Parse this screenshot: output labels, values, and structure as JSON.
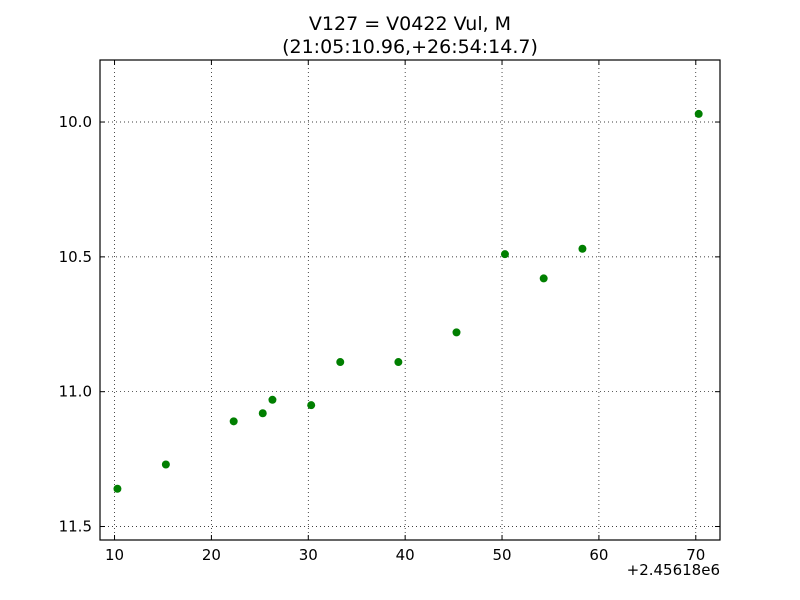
{
  "chart_data": {
    "type": "scatter",
    "title": "V127 = V0422 Vul, M",
    "subtitle": "(21:05:10.96,+26:54:14.7)",
    "xlabel": "",
    "ylabel": "",
    "x_offset_label": "+2.45618e6",
    "xlim": [
      8.5,
      72.5
    ],
    "ylim": [
      11.55,
      9.77
    ],
    "y_inverted": true,
    "x_ticks": [
      10,
      20,
      30,
      40,
      50,
      60,
      70
    ],
    "x_tick_labels": [
      "10",
      "20",
      "30",
      "40",
      "50",
      "60",
      "70"
    ],
    "y_ticks": [
      10.0,
      10.5,
      11.0,
      11.5
    ],
    "y_tick_labels": [
      "10.0",
      "10.5",
      "11.0",
      "11.5"
    ],
    "grid": true,
    "marker_color": "#007f00",
    "series": [
      {
        "points": [
          {
            "x": 10.3,
            "y": 11.36
          },
          {
            "x": 15.3,
            "y": 11.27
          },
          {
            "x": 22.3,
            "y": 11.11
          },
          {
            "x": 25.3,
            "y": 11.08
          },
          {
            "x": 26.3,
            "y": 11.03
          },
          {
            "x": 30.3,
            "y": 11.05
          },
          {
            "x": 33.3,
            "y": 10.89
          },
          {
            "x": 39.3,
            "y": 10.89
          },
          {
            "x": 45.3,
            "y": 10.78
          },
          {
            "x": 50.3,
            "y": 10.49
          },
          {
            "x": 54.3,
            "y": 10.58
          },
          {
            "x": 58.3,
            "y": 10.47
          },
          {
            "x": 70.3,
            "y": 9.97
          }
        ]
      }
    ]
  }
}
